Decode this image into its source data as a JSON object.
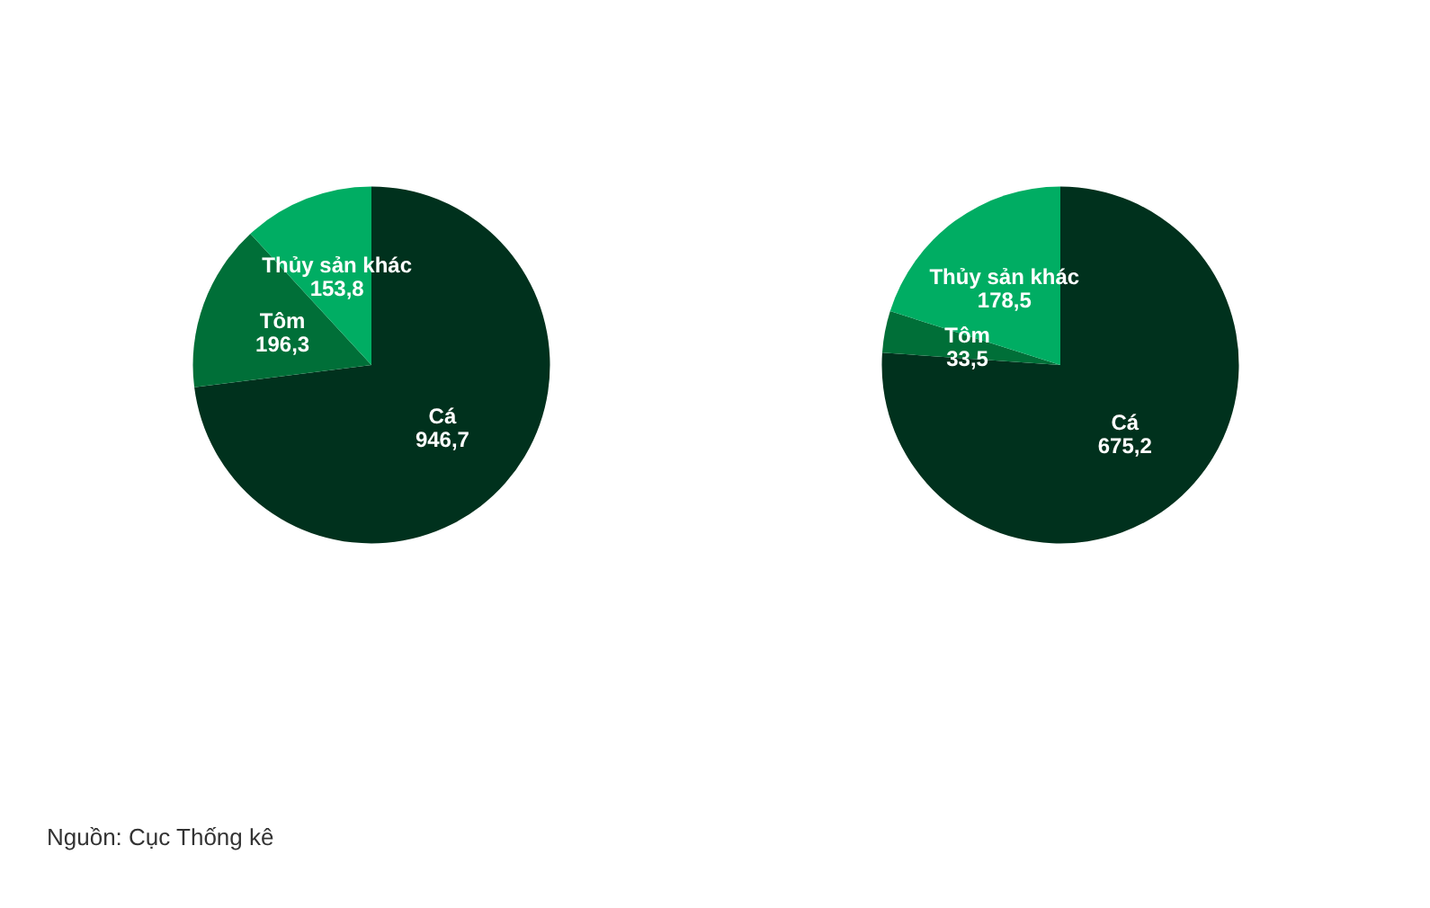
{
  "chart_data": [
    {
      "type": "pie",
      "categories": [
        "Cá",
        "Tôm",
        "Thủy sản khác"
      ],
      "values": [
        946.7,
        196.3,
        153.8
      ],
      "value_labels": [
        "946,7",
        "196,3",
        "153,8"
      ],
      "colors": [
        "#00311d",
        "#006f38",
        "#00ad63"
      ],
      "annotations": [
        "Nguồn: Cục Thống kê"
      ]
    },
    {
      "type": "pie",
      "categories": [
        "Cá",
        "Tôm",
        "Thủy sản khác"
      ],
      "values": [
        675.2,
        33.5,
        178.5
      ],
      "value_labels": [
        "675,2",
        "33,5",
        "178,5"
      ],
      "colors": [
        "#00311d",
        "#006f38",
        "#00ad63"
      ]
    }
  ]
}
